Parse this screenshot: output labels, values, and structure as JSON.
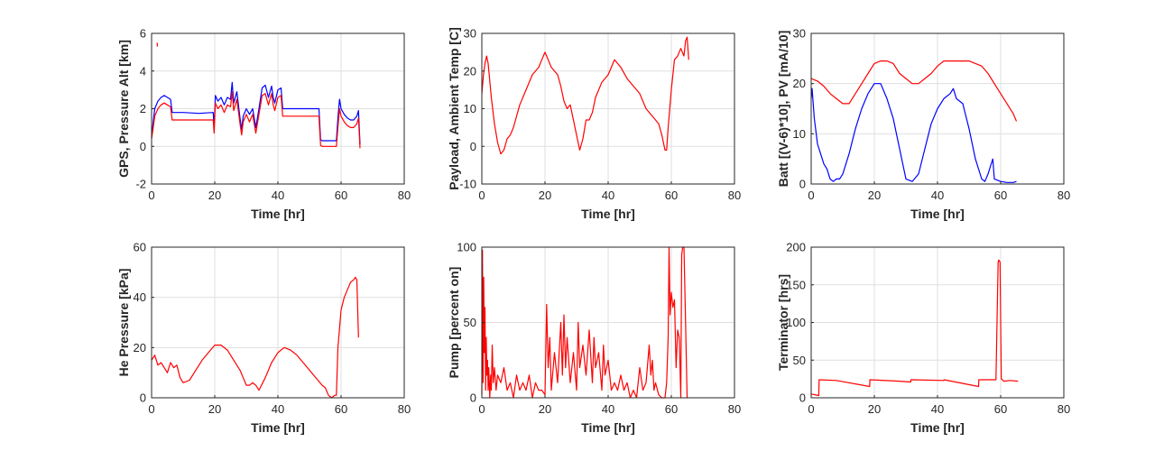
{
  "chart_data": [
    {
      "type": "line",
      "xlabel": "Time [hr]",
      "ylabel": "GPS, Pressure Alt [km]",
      "xlim": [
        0,
        80
      ],
      "ylim": [
        -2,
        6
      ],
      "xticks": [
        0,
        20,
        40,
        60,
        80
      ],
      "yticks": [
        -2,
        0,
        2,
        4,
        6
      ],
      "grid": true,
      "series": [
        {
          "color": "#0000ff",
          "x": [
            0,
            0.5,
            1,
            2,
            3,
            4,
            5,
            6,
            6.5,
            7,
            10,
            15,
            19.5,
            19.8,
            20.2,
            21,
            22,
            23,
            24,
            25,
            25.5,
            26,
            27,
            28,
            28.5,
            29,
            30,
            31,
            32,
            33,
            34,
            35,
            36,
            37,
            38,
            38.5,
            39,
            40,
            41,
            41.5,
            42,
            44,
            50,
            53,
            53.5,
            54,
            58.5,
            59,
            59.5,
            60,
            61,
            62,
            63,
            64,
            65,
            65.5,
            66
          ],
          "y": [
            0.5,
            1.3,
            2.0,
            2.4,
            2.6,
            2.7,
            2.6,
            2.5,
            1.8,
            1.8,
            1.8,
            1.75,
            1.8,
            1.0,
            2.7,
            2.4,
            2.6,
            2.2,
            2.6,
            2.5,
            3.4,
            2.3,
            2.9,
            1.5,
            0.9,
            1.6,
            2.0,
            1.7,
            2.0,
            1.0,
            2.0,
            3.1,
            3.25,
            2.6,
            3.2,
            2.6,
            2.3,
            3.0,
            3.1,
            2.0,
            2.0,
            2.0,
            2.0,
            2.0,
            0.35,
            0.3,
            0.3,
            1.5,
            2.5,
            2.0,
            1.7,
            1.5,
            1.4,
            1.4,
            1.6,
            1.9,
            0.1
          ]
        },
        {
          "color": "#ff0000",
          "x": [
            0,
            0.5,
            1,
            2,
            3,
            4,
            5,
            6,
            6.5,
            7,
            10,
            15,
            19.5,
            19.8,
            20.2,
            21,
            22,
            23,
            24,
            25,
            25.5,
            26,
            27,
            28,
            28.5,
            29,
            30,
            31,
            32,
            33,
            34,
            35,
            36,
            37,
            38,
            38.5,
            39,
            40,
            41,
            41.5,
            42,
            44,
            50,
            53,
            53.5,
            54,
            58.5,
            59,
            59.5,
            60,
            61,
            62,
            63,
            64,
            65,
            65.5,
            66
          ],
          "y": [
            0.4,
            1.0,
            1.6,
            2.0,
            2.2,
            2.3,
            2.2,
            2.1,
            1.4,
            1.4,
            1.4,
            1.4,
            1.4,
            0.7,
            2.3,
            2.0,
            2.2,
            1.8,
            2.2,
            2.1,
            2.9,
            1.9,
            2.5,
            1.2,
            0.6,
            1.3,
            1.7,
            1.3,
            1.7,
            0.7,
            1.7,
            2.7,
            2.8,
            2.2,
            2.8,
            2.2,
            1.9,
            2.6,
            2.7,
            1.6,
            1.6,
            1.6,
            1.6,
            1.6,
            0.05,
            0.0,
            0.0,
            1.0,
            2.0,
            1.6,
            1.3,
            1.1,
            1.0,
            1.0,
            1.2,
            1.5,
            -0.1
          ]
        },
        {
          "color": "#ff0000",
          "x": [
            1.8,
            1.8
          ],
          "y": [
            5.3,
            5.5
          ]
        }
      ]
    },
    {
      "type": "line",
      "xlabel": "Time [hr]",
      "ylabel": "Payload, Ambient Temp [C]",
      "xlim": [
        0,
        80
      ],
      "ylim": [
        -10,
        30
      ],
      "xticks": [
        0,
        20,
        40,
        60,
        80
      ],
      "yticks": [
        -10,
        0,
        10,
        20,
        30
      ],
      "grid": true,
      "series": [
        {
          "color": "#ff0000",
          "x": [
            0,
            0.5,
            1,
            1.5,
            2,
            3,
            4,
            5,
            6,
            7,
            8,
            9,
            10,
            12,
            14,
            16,
            18,
            19,
            20,
            21,
            22,
            24,
            25,
            26,
            27,
            28,
            29,
            30,
            31,
            32,
            33,
            34,
            35,
            36,
            38,
            40,
            41,
            42,
            43,
            44,
            46,
            48,
            50,
            52,
            54,
            55,
            56,
            57,
            58,
            58.5,
            59,
            60,
            61,
            62,
            63,
            64,
            64.5,
            65,
            65.5
          ],
          "y": [
            14,
            19,
            22,
            24,
            22,
            13,
            6,
            1,
            -2,
            -1,
            2,
            3,
            5,
            11,
            15,
            19,
            21,
            23,
            25,
            23,
            21,
            19,
            16,
            12,
            10,
            11,
            7,
            3,
            -1,
            2,
            7,
            7,
            9,
            13,
            17,
            19,
            21,
            23,
            22,
            21,
            18,
            16,
            14,
            10,
            8,
            7,
            6,
            3,
            -1,
            -1,
            5,
            15,
            23,
            24,
            26,
            24,
            28,
            29,
            23
          ]
        }
      ]
    },
    {
      "type": "line",
      "xlabel": "Time [hr]",
      "ylabel": "Batt [(V-6)*10], PV [mA/10]",
      "xlim": [
        0,
        80
      ],
      "ylim": [
        0,
        30
      ],
      "xticks": [
        0,
        20,
        40,
        60,
        80
      ],
      "yticks": [
        0,
        10,
        20,
        30
      ],
      "grid": true,
      "series": [
        {
          "color": "#0000ff",
          "x": [
            0,
            0.3,
            1,
            2,
            3,
            4,
            5,
            6,
            7,
            8,
            9,
            10,
            12,
            14,
            16,
            18,
            20,
            22,
            24,
            26,
            28,
            30,
            32,
            34,
            36,
            38,
            40,
            42,
            44,
            45,
            46,
            48,
            50,
            52,
            54,
            55,
            56,
            57,
            57.5,
            58,
            60,
            62,
            64,
            65
          ],
          "y": [
            17,
            19,
            13,
            8,
            6,
            4,
            3,
            1,
            0.5,
            1,
            1,
            2,
            6,
            11,
            15,
            18,
            20,
            20,
            17,
            13,
            7,
            1,
            0.5,
            2,
            7,
            12,
            15,
            17,
            18,
            19,
            17,
            16,
            11,
            5,
            1,
            0.5,
            2,
            4,
            5,
            1,
            0.5,
            0.3,
            0.3,
            0.5
          ]
        },
        {
          "color": "#ff0000",
          "x": [
            0,
            2,
            4,
            6,
            8,
            10,
            12,
            14,
            16,
            18,
            20,
            22,
            24,
            26,
            28,
            30,
            32,
            34,
            36,
            38,
            40,
            42,
            44,
            46,
            48,
            50,
            52,
            54,
            56,
            58,
            60,
            62,
            64,
            65
          ],
          "y": [
            21,
            20.5,
            19.5,
            18,
            17,
            16,
            16,
            18,
            20,
            22,
            24,
            24.5,
            24.5,
            24,
            22,
            21,
            20,
            20,
            21,
            22,
            23.5,
            24.5,
            24.5,
            24.5,
            24.5,
            24.5,
            24,
            23.5,
            22,
            20,
            18,
            16,
            14,
            12.5
          ]
        }
      ]
    },
    {
      "type": "line",
      "xlabel": "Time [hr]",
      "ylabel": "He Pressure [kPa]",
      "xlim": [
        0,
        80
      ],
      "ylim": [
        0,
        60
      ],
      "xticks": [
        0,
        20,
        40,
        60,
        80
      ],
      "yticks": [
        0,
        20,
        40,
        60
      ],
      "grid": true,
      "series": [
        {
          "color": "#ff0000",
          "x": [
            0,
            1,
            2,
            3,
            4,
            5,
            6,
            7,
            8,
            9,
            10,
            12,
            14,
            16,
            18,
            20,
            22,
            24,
            26,
            28,
            29,
            30,
            31,
            32,
            33,
            34,
            36,
            38,
            40,
            42,
            44,
            46,
            48,
            50,
            52,
            54,
            55,
            56,
            57,
            58,
            58.5,
            59,
            60,
            61,
            62,
            63,
            64,
            64.5,
            65,
            65.5
          ],
          "y": [
            15,
            17,
            13,
            14,
            12,
            10,
            14,
            12,
            13,
            8,
            6,
            7,
            11,
            15,
            18,
            21,
            21,
            19,
            15,
            11,
            8,
            5,
            5,
            6,
            5,
            3,
            8,
            14,
            18,
            20,
            19,
            17,
            14,
            11,
            8,
            5,
            4,
            1,
            0,
            1,
            1,
            20,
            35,
            40,
            43,
            46,
            47,
            48,
            47,
            24
          ]
        }
      ]
    },
    {
      "type": "line",
      "xlabel": "Time [hr]",
      "ylabel": "Pump [percent on]",
      "xlim": [
        0,
        80
      ],
      "ylim": [
        0,
        100
      ],
      "xticks": [
        0,
        20,
        40,
        60,
        80
      ],
      "yticks": [
        0,
        50,
        100
      ],
      "grid": true,
      "series": [
        {
          "color": "#ff0000",
          "x": [
            0,
            0.2,
            0.4,
            0.6,
            0.8,
            1.0,
            1.2,
            1.4,
            1.6,
            1.8,
            2.0,
            2.2,
            2.5,
            2.8,
            3.0,
            3.3,
            3.6,
            4.0,
            4.5,
            5.0,
            6,
            7,
            8,
            9,
            10,
            11,
            12,
            13,
            14,
            15,
            16,
            17,
            18,
            19,
            20,
            20.5,
            21,
            21.5,
            22,
            23,
            24,
            25,
            25.5,
            26,
            26.5,
            27,
            28,
            29,
            30,
            30.5,
            31,
            32,
            33,
            34,
            35,
            35.5,
            36,
            37,
            38,
            38.5,
            39,
            40,
            41,
            42,
            43,
            44,
            45,
            46,
            47,
            48,
            49,
            50,
            51,
            52,
            53,
            53.5,
            54,
            54.5,
            55,
            56,
            57,
            58,
            58.5,
            59,
            59.3,
            59.6,
            60,
            60.5,
            61,
            61.5,
            62,
            62.5,
            63,
            63.3,
            63.6,
            64,
            64.5,
            65,
            65.3
          ],
          "y": [
            2,
            98,
            10,
            80,
            30,
            60,
            5,
            40,
            15,
            25,
            5,
            20,
            0,
            15,
            5,
            35,
            10,
            20,
            5,
            15,
            10,
            20,
            5,
            10,
            0,
            15,
            5,
            10,
            5,
            15,
            0,
            10,
            5,
            5,
            2,
            62,
            20,
            40,
            5,
            30,
            10,
            50,
            15,
            55,
            20,
            40,
            10,
            30,
            5,
            50,
            20,
            35,
            15,
            45,
            10,
            40,
            20,
            30,
            5,
            35,
            15,
            25,
            5,
            10,
            5,
            15,
            5,
            10,
            0,
            5,
            0,
            20,
            5,
            10,
            35,
            15,
            25,
            5,
            10,
            2,
            0,
            0,
            10,
            40,
            100,
            55,
            70,
            60,
            65,
            20,
            45,
            40,
            0,
            95,
            100,
            100,
            50,
            0,
            0
          ]
        }
      ]
    },
    {
      "type": "line",
      "xlabel": "Time [hr]",
      "ylabel": "Terminator [hrs]",
      "xlim": [
        0,
        80
      ],
      "ylim": [
        0,
        200
      ],
      "xticks": [
        0,
        20,
        40,
        60,
        80
      ],
      "yticks": [
        0,
        50,
        100,
        150,
        200
      ],
      "grid": true,
      "series": [
        {
          "color": "#ff0000",
          "x": [
            0,
            2.4,
            2.5,
            8,
            18.5,
            18.6,
            28,
            31.5,
            31.6,
            42,
            42.1,
            53,
            53.1,
            58.5,
            59.2,
            59.4,
            59.8,
            60.2,
            61,
            63,
            65.5
          ],
          "y": [
            5,
            3,
            24,
            23,
            15,
            24,
            22,
            21,
            24,
            23,
            24,
            15,
            24,
            24,
            180,
            183,
            180,
            25,
            22,
            23,
            22
          ]
        }
      ]
    }
  ]
}
